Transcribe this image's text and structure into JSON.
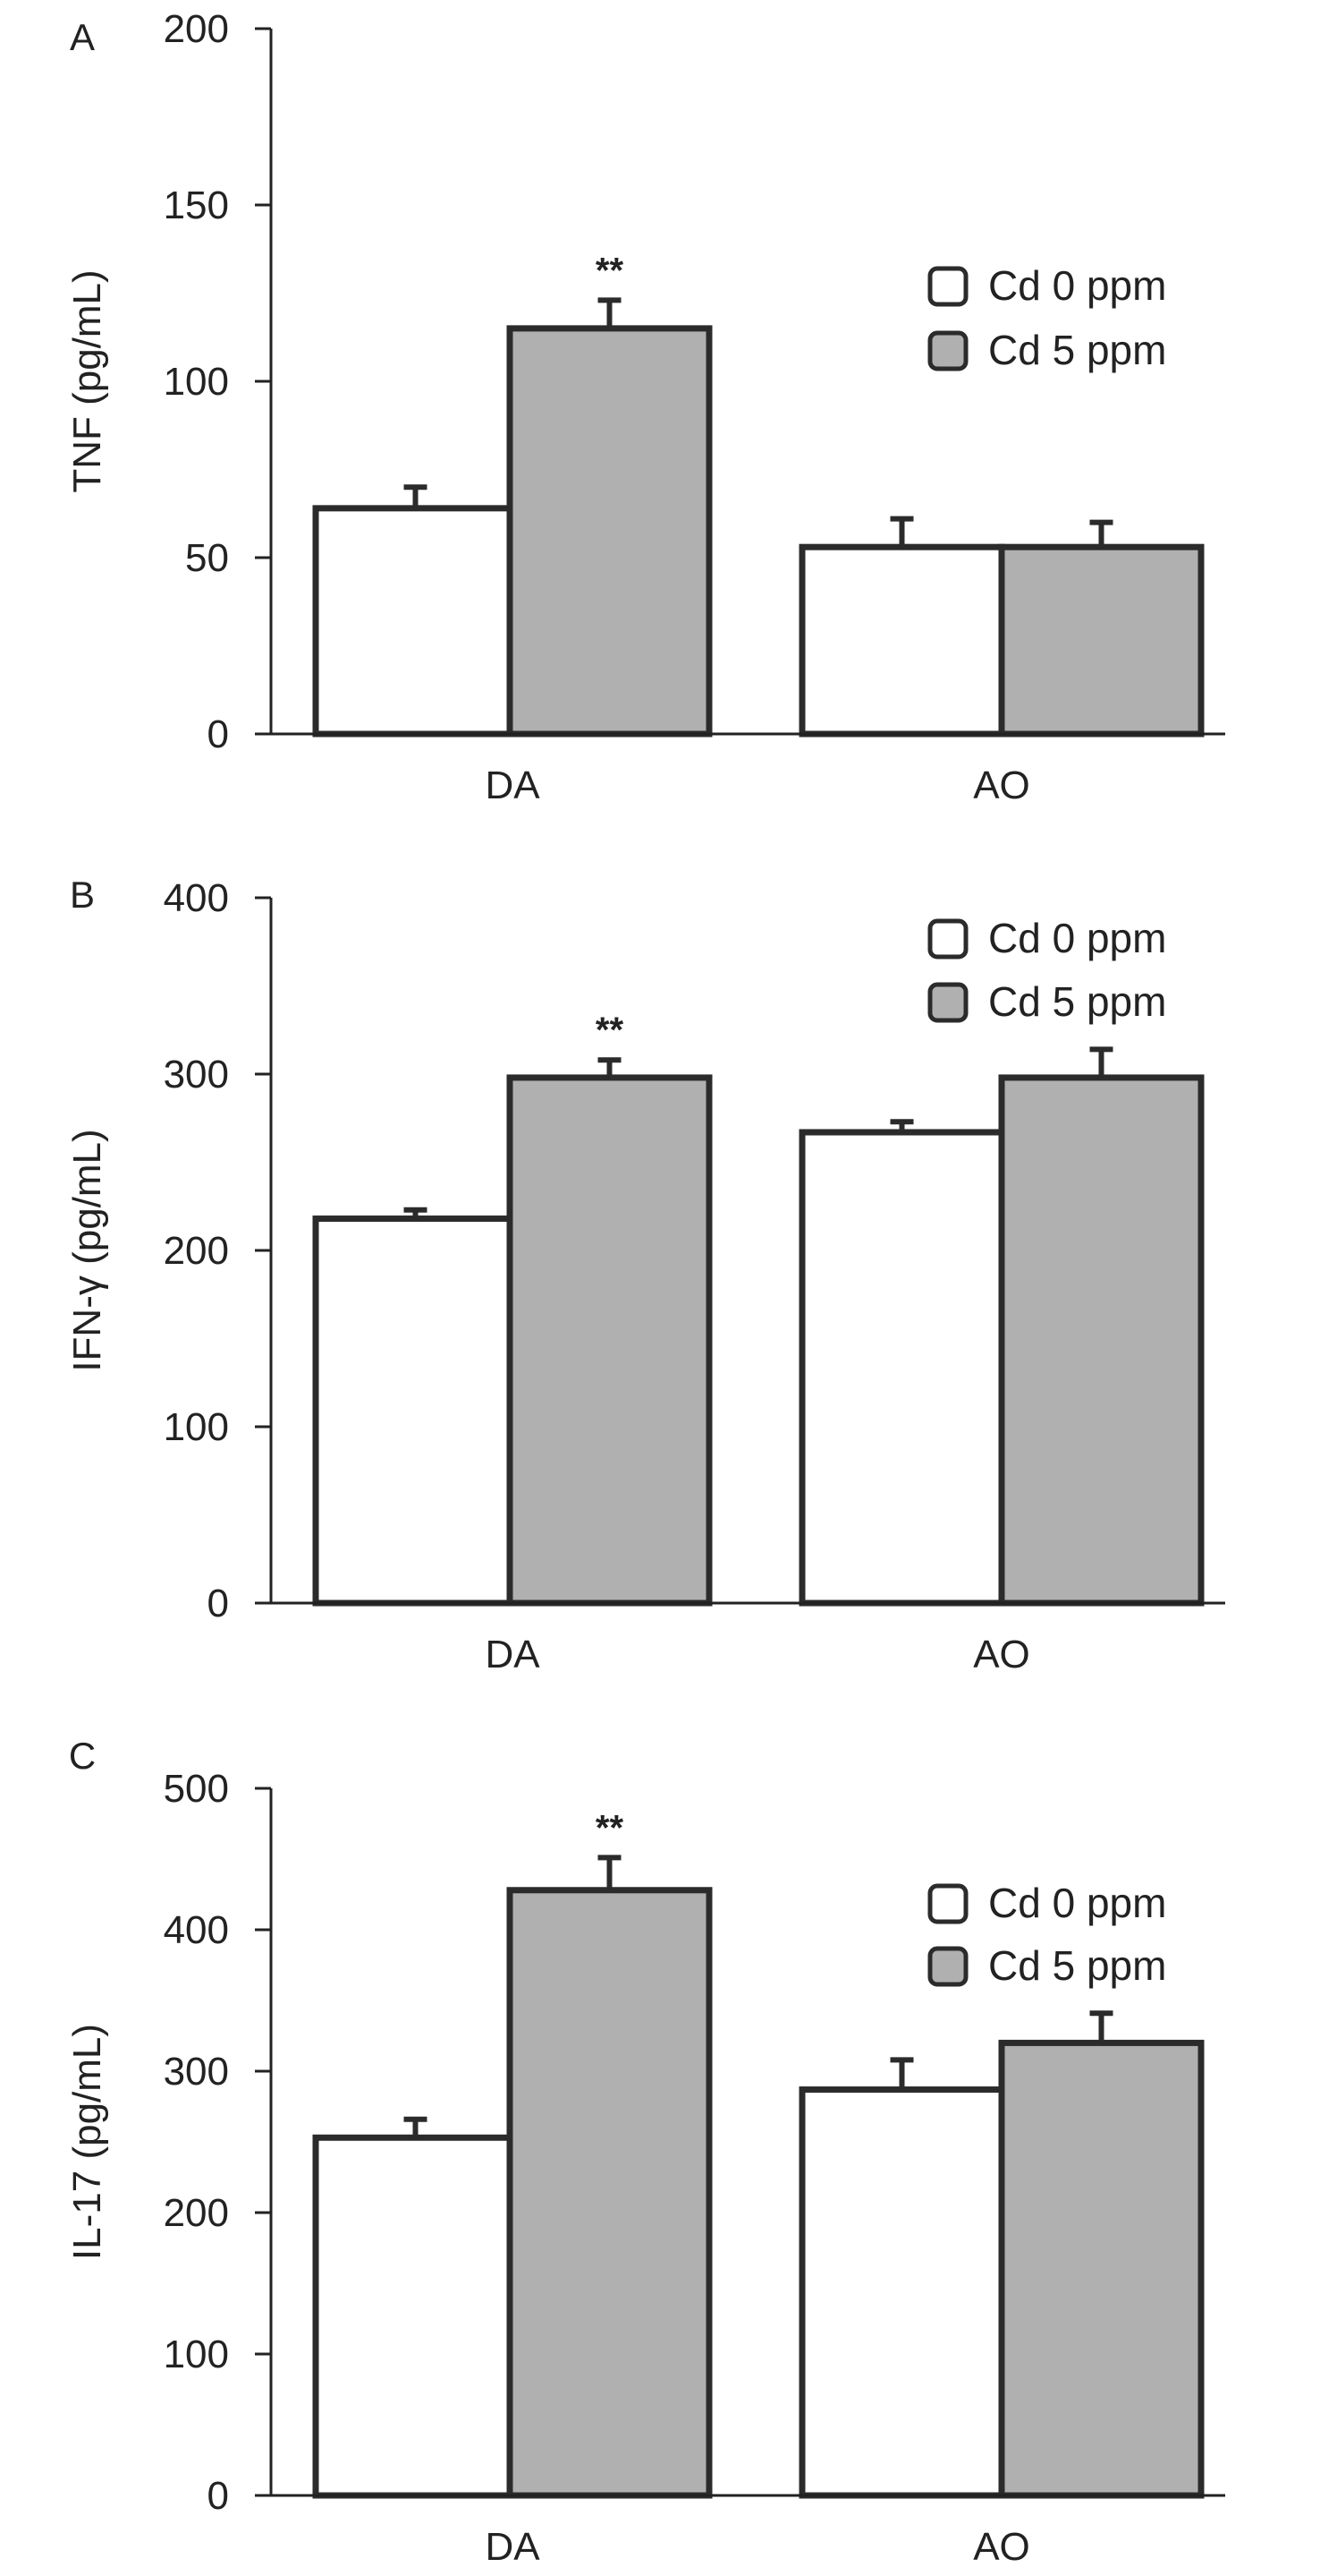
{
  "colors": {
    "axis": "#222222",
    "bar_edge": "#2b2b2b",
    "series_fill": [
      "#ffffff",
      "#b0b0b0"
    ]
  },
  "chart_data": [
    {
      "type": "bar",
      "panel": "A",
      "categories": [
        "DA",
        "AO"
      ],
      "ylabel": "TNF (pg/mL)",
      "ylim": [
        0,
        200
      ],
      "yticks": [
        0,
        50,
        100,
        150,
        200
      ],
      "legend": {
        "position": "top-right"
      },
      "series": [
        {
          "name": "Cd 0 ppm",
          "values": [
            64,
            53
          ],
          "errors": [
            6,
            8
          ]
        },
        {
          "name": "Cd 5 ppm",
          "values": [
            115,
            53
          ],
          "errors": [
            8,
            7
          ]
        }
      ],
      "annotations": [
        {
          "category": "DA",
          "series": 1,
          "text": "**"
        }
      ]
    },
    {
      "type": "bar",
      "panel": "B",
      "categories": [
        "DA",
        "AO"
      ],
      "ylabel": "IFN-γ (pg/mL)",
      "ylim": [
        0,
        400
      ],
      "yticks": [
        0,
        100,
        200,
        300,
        400
      ],
      "legend": {
        "position": "top-right"
      },
      "series": [
        {
          "name": "Cd 0 ppm",
          "values": [
            218,
            267
          ],
          "errors": [
            5,
            6
          ]
        },
        {
          "name": "Cd 5 ppm",
          "values": [
            298,
            298
          ],
          "errors": [
            10,
            16
          ]
        }
      ],
      "annotations": [
        {
          "category": "DA",
          "series": 1,
          "text": "**"
        }
      ]
    },
    {
      "type": "bar",
      "panel": "C",
      "categories": [
        "DA",
        "AO"
      ],
      "ylabel": "IL-17 (pg/mL)",
      "ylim": [
        0,
        500
      ],
      "yticks": [
        0,
        100,
        200,
        300,
        400,
        500
      ],
      "legend": {
        "position": "top-right"
      },
      "series": [
        {
          "name": "Cd 0 ppm",
          "values": [
            253,
            287
          ],
          "errors": [
            13,
            21
          ]
        },
        {
          "name": "Cd 5 ppm",
          "values": [
            428,
            320
          ],
          "errors": [
            23,
            21
          ]
        }
      ],
      "annotations": [
        {
          "category": "DA",
          "series": 1,
          "text": "**"
        }
      ]
    }
  ]
}
